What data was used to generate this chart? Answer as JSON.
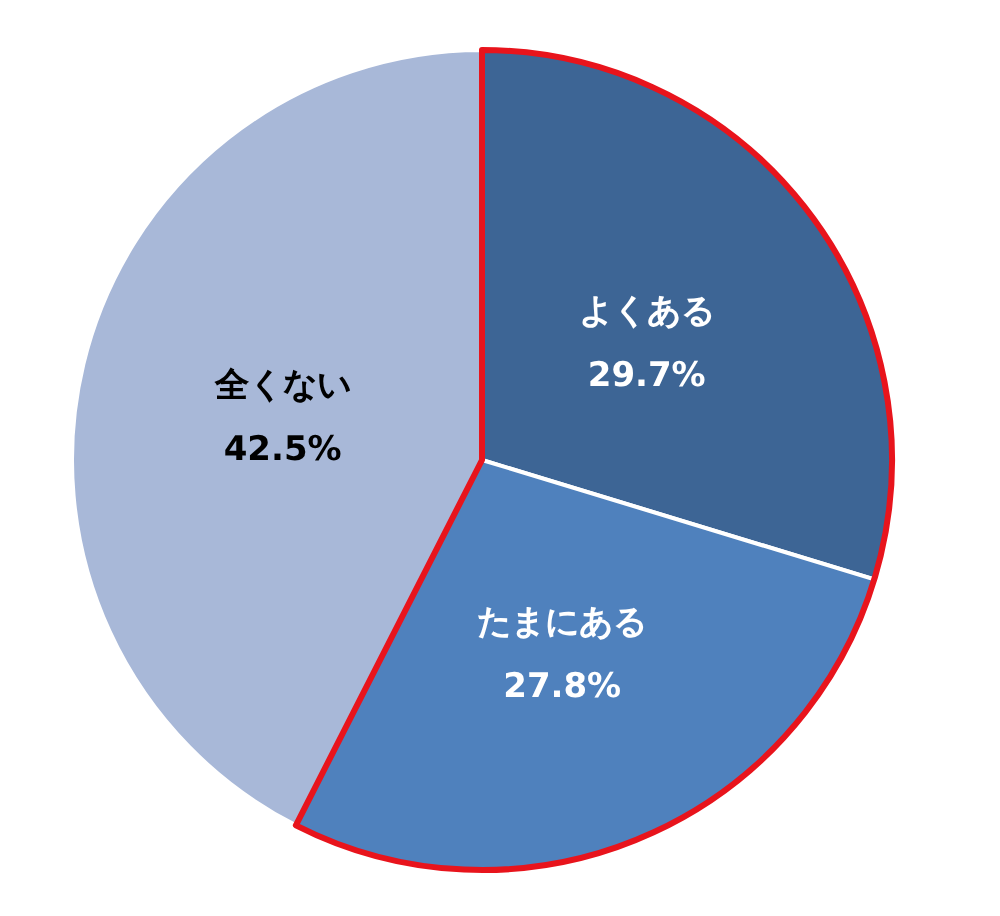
{
  "chart_data": {
    "type": "pie",
    "categories": [
      "よくある",
      "たまにある",
      "全くない"
    ],
    "values": [
      29.7,
      27.8,
      42.5
    ],
    "colors": [
      "#3d6595",
      "#4f81bd",
      "#a8b8d8"
    ],
    "value_labels": [
      "29.7%",
      "27.8%",
      "42.5%"
    ]
  }
}
